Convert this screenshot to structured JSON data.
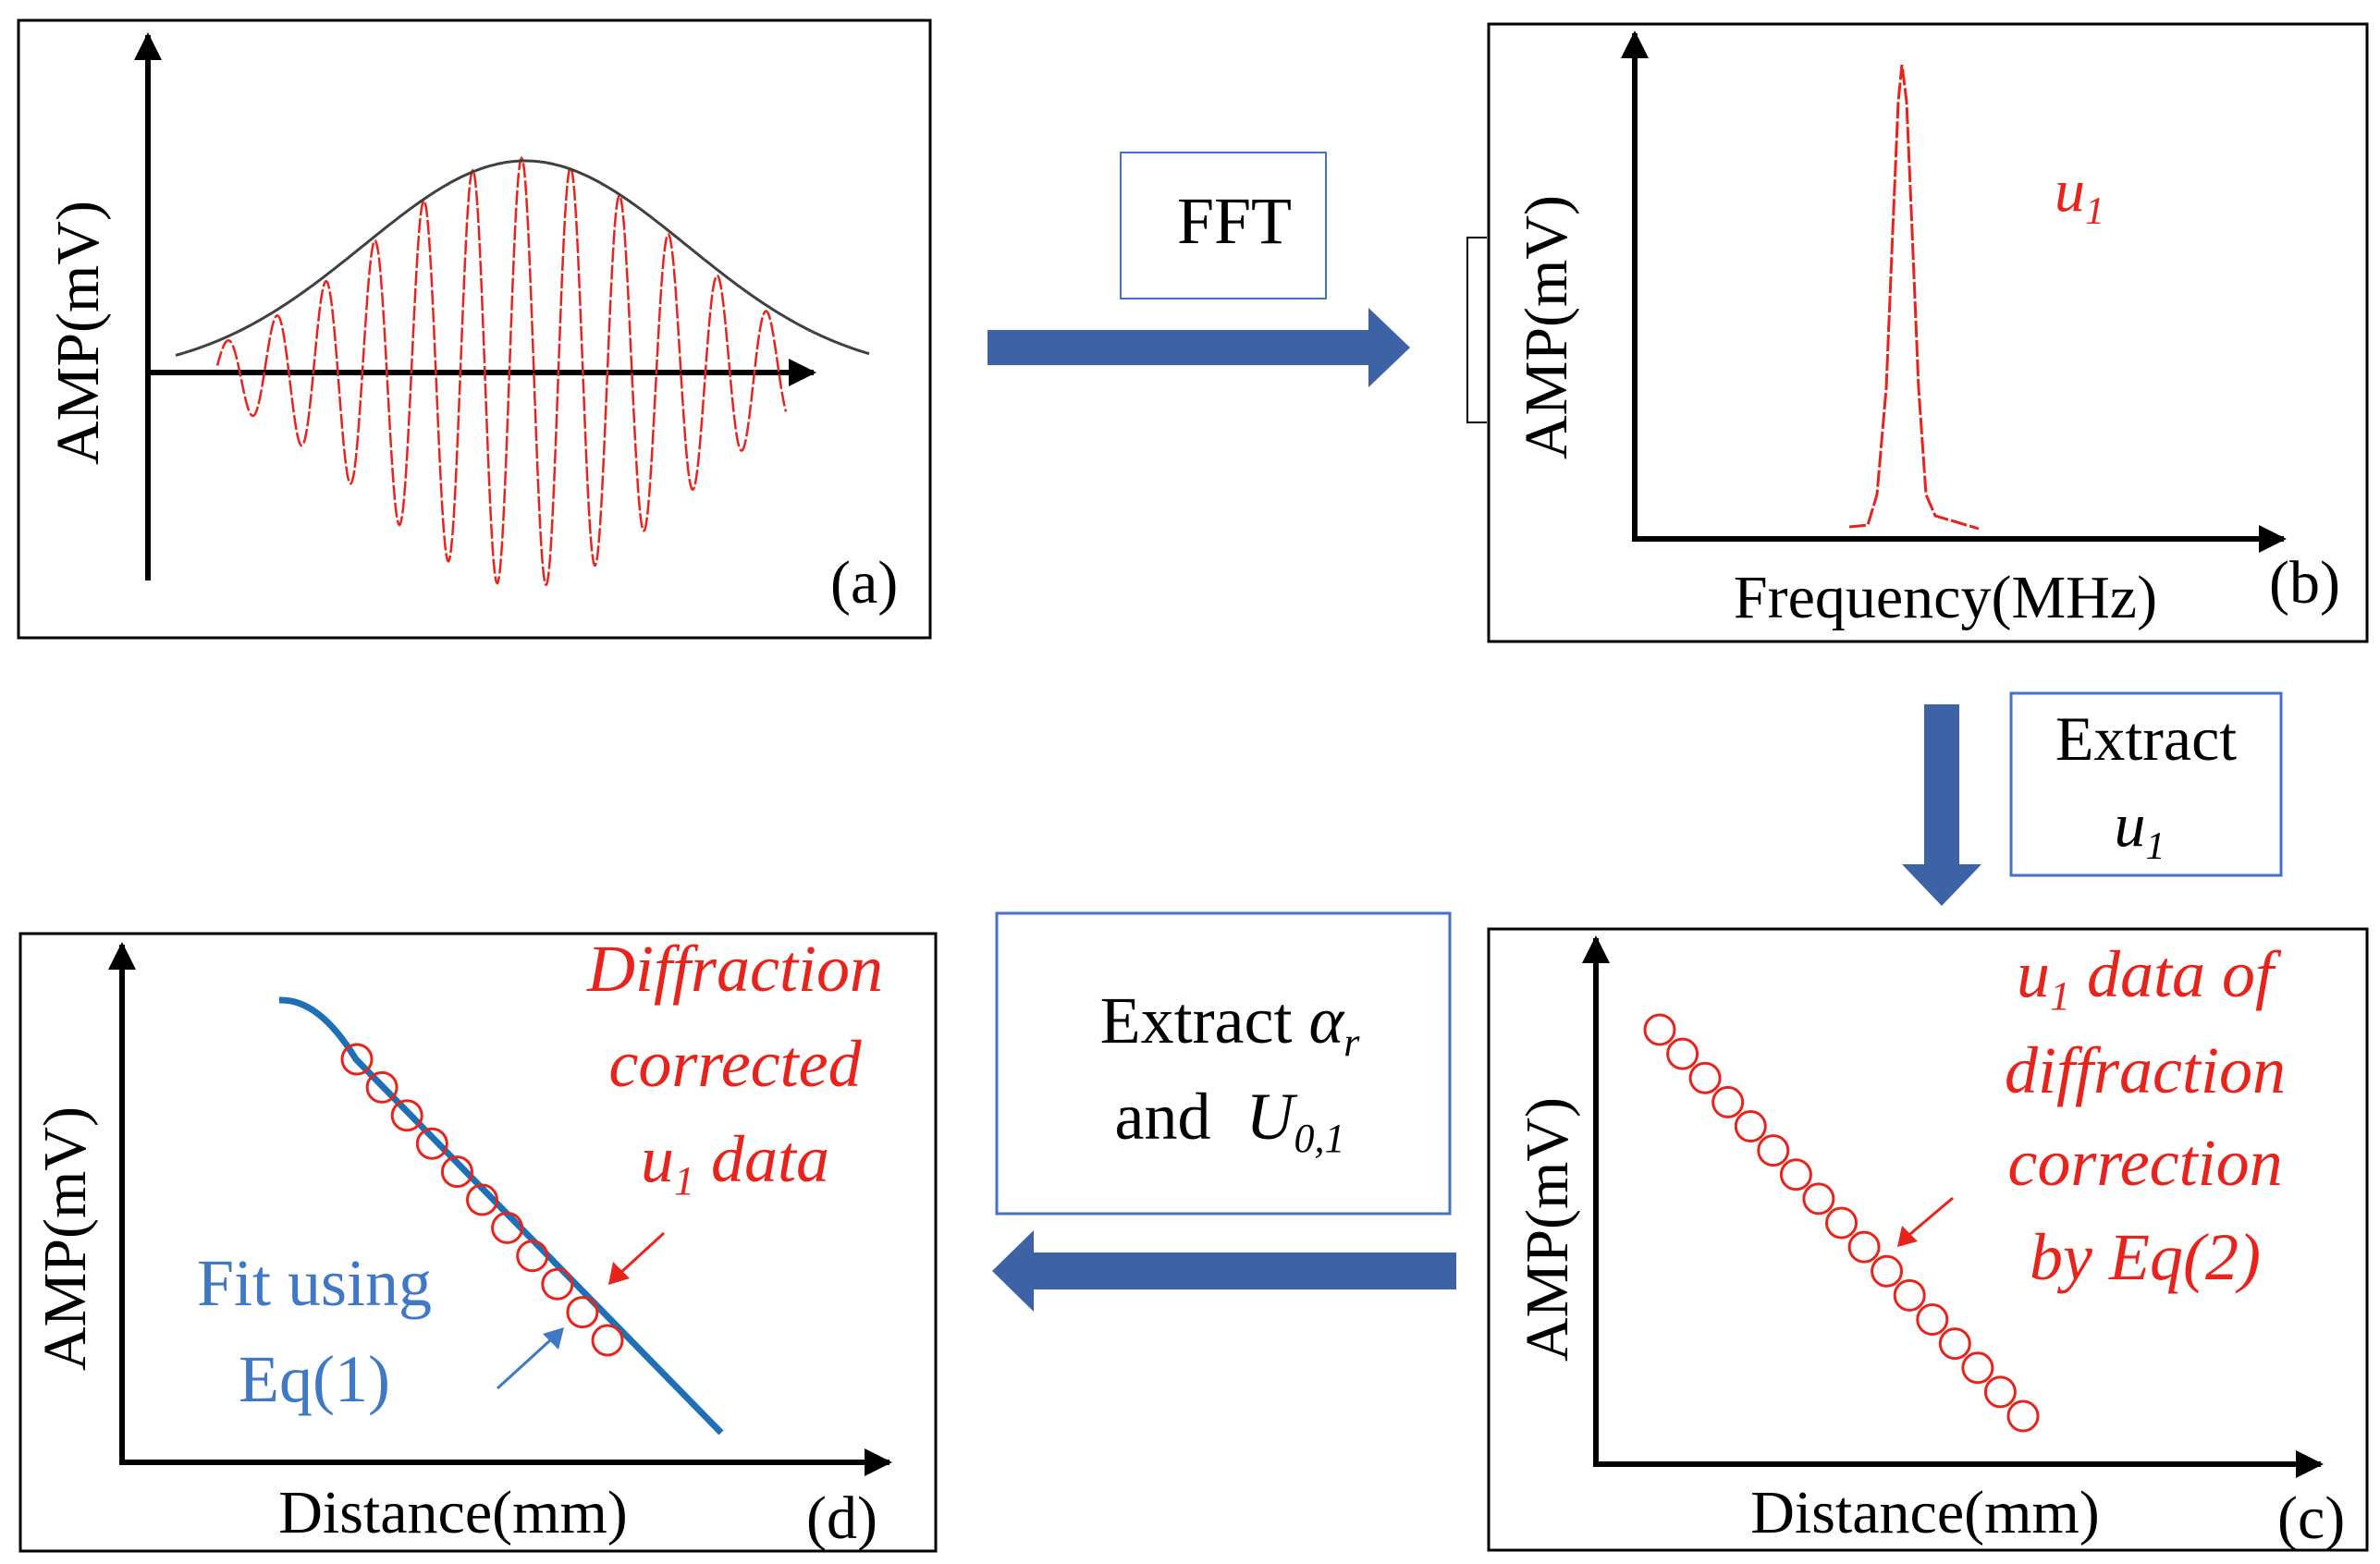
{
  "panel_a": {
    "ylabel": "AMP(mV)",
    "panel_label": "(a)"
  },
  "panel_b": {
    "ylabel": "AMP(mV)",
    "xlabel": "Frequency(MHz)",
    "panel_label": "(b)",
    "peak_label": {
      "main": "u",
      "sub": "1"
    }
  },
  "panel_c": {
    "ylabel": "AMP(mV)",
    "xlabel": "Distance(mm)",
    "panel_label": "(c)",
    "annotation": [
      {
        "main": "u",
        "sub": "1",
        "rest": " data of"
      },
      {
        "main": "diffraction"
      },
      {
        "main": "correction"
      },
      {
        "main": "by Eq(2)"
      }
    ],
    "marker_count": 17
  },
  "panel_d": {
    "ylabel": "AMP(mV)",
    "xlabel": "Distance(mm)",
    "panel_label": "(d)",
    "red_annotation": [
      {
        "main": "Diffraction"
      },
      {
        "main": "corrected"
      },
      {
        "main": "u",
        "sub": "1",
        "rest": " data"
      }
    ],
    "blue_annotation": [
      "Fit using",
      "Eq(1)"
    ],
    "marker_count": 11
  },
  "steps": {
    "fft": "FFT",
    "extract_u1": {
      "line1": "Extract",
      "main": "u",
      "sub": "1"
    },
    "extract_alpha": {
      "prefix": "Extract ",
      "alpha": "α",
      "alpha_sub": "r",
      "line2": "and ",
      "U": "U",
      "U_sub": "0,1"
    }
  },
  "colors": {
    "signal": "#e8231c",
    "envelope": "#404040",
    "arrow": "#3d62a6",
    "box_border": "#4472c4",
    "fit_line": "#1e6fb5",
    "fit_text": "#3f78c4",
    "axis": "#000000"
  }
}
